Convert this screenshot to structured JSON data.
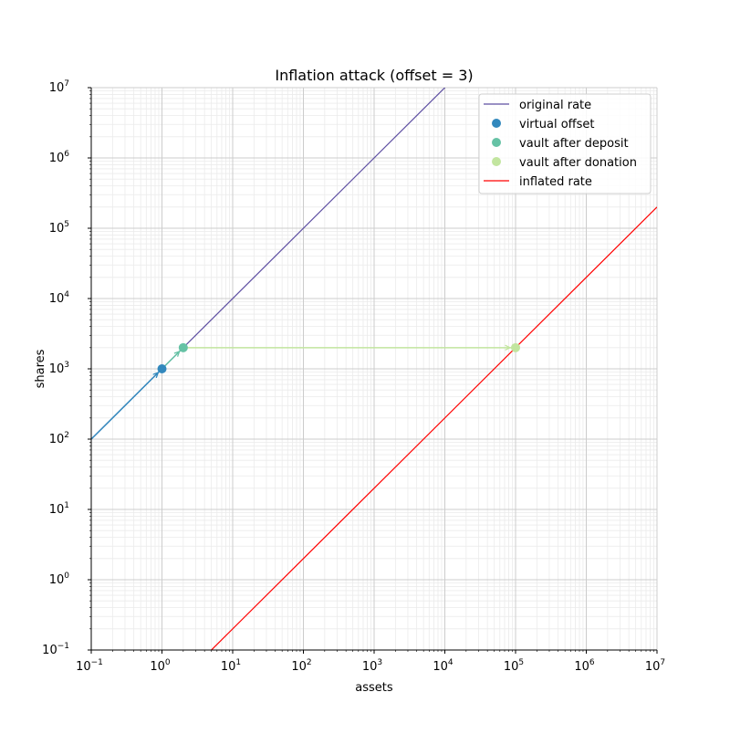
{
  "chart_data": {
    "type": "line",
    "title": "Inflation attack (offset = 3)",
    "xlabel": "assets",
    "ylabel": "shares",
    "xscale": "log",
    "yscale": "log",
    "xlim": [
      0.1,
      10000000
    ],
    "ylim": [
      0.1,
      10000000
    ],
    "xticks": [
      {
        "value": 0.1,
        "base": "10",
        "exp": "−1"
      },
      {
        "value": 1,
        "base": "10",
        "exp": "0"
      },
      {
        "value": 10,
        "base": "10",
        "exp": "1"
      },
      {
        "value": 100,
        "base": "10",
        "exp": "2"
      },
      {
        "value": 1000,
        "base": "10",
        "exp": "3"
      },
      {
        "value": 10000,
        "base": "10",
        "exp": "4"
      },
      {
        "value": 100000,
        "base": "10",
        "exp": "5"
      },
      {
        "value": 1000000,
        "base": "10",
        "exp": "6"
      },
      {
        "value": 10000000,
        "base": "10",
        "exp": "7"
      }
    ],
    "yticks": [
      {
        "value": 0.1,
        "base": "10",
        "exp": "−1"
      },
      {
        "value": 1,
        "base": "10",
        "exp": "0"
      },
      {
        "value": 10,
        "base": "10",
        "exp": "1"
      },
      {
        "value": 100,
        "base": "10",
        "exp": "2"
      },
      {
        "value": 1000,
        "base": "10",
        "exp": "3"
      },
      {
        "value": 10000,
        "base": "10",
        "exp": "4"
      },
      {
        "value": 100000,
        "base": "10",
        "exp": "5"
      },
      {
        "value": 1000000,
        "base": "10",
        "exp": "6"
      },
      {
        "value": 10000000,
        "base": "10",
        "exp": "7"
      }
    ],
    "grid": {
      "major": true,
      "minor": true
    },
    "legend_placement": "top-right",
    "series": [
      {
        "name": "original rate",
        "kind": "line",
        "color": "#5e4fa2",
        "x": [
          0.1,
          10000000
        ],
        "y": [
          100,
          10000000000
        ]
      },
      {
        "name": "virtual offset",
        "kind": "scatter",
        "color": "#3288bd",
        "x": [
          1
        ],
        "y": [
          1000
        ]
      },
      {
        "name": "vault after deposit",
        "kind": "scatter",
        "color": "#66c2a5",
        "x": [
          2
        ],
        "y": [
          2000
        ]
      },
      {
        "name": "vault after donation",
        "kind": "scatter",
        "color": "#c2e59f",
        "x": [
          100002
        ],
        "y": [
          2000
        ]
      },
      {
        "name": "inflated rate",
        "kind": "line",
        "color": "#ff0000",
        "x": [
          0.1,
          10000000
        ],
        "y": [
          0.0019999,
          199996
        ]
      }
    ],
    "arrows": [
      {
        "from": [
          0.1,
          100
        ],
        "to": [
          1,
          1000
        ],
        "color": "#3288bd"
      },
      {
        "from": [
          1,
          1000
        ],
        "to": [
          2,
          2000
        ],
        "color": "#66c2a5"
      },
      {
        "from": [
          2,
          2000
        ],
        "to": [
          100002,
          2000
        ],
        "color": "#c2e59f"
      }
    ]
  }
}
